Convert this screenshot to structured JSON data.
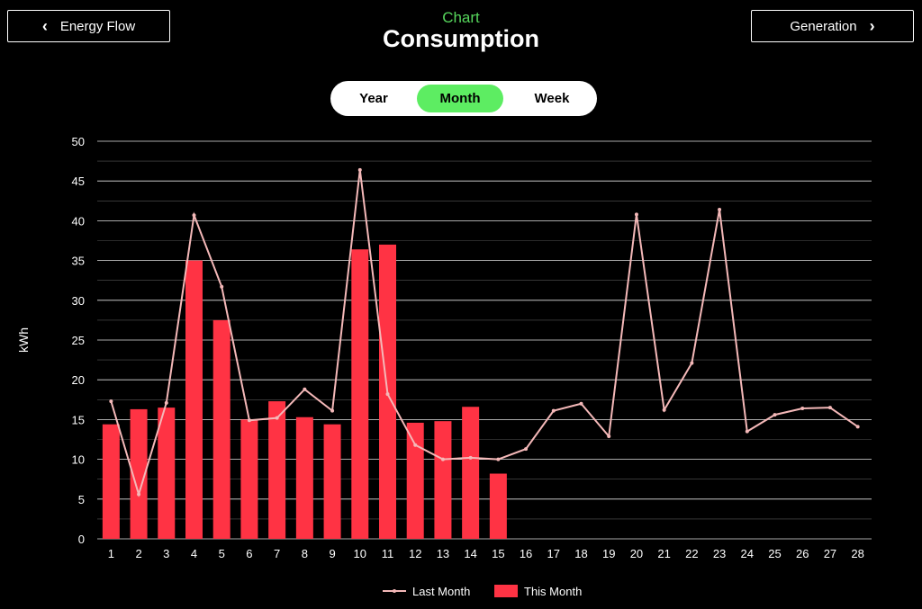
{
  "nav": {
    "left_label": "Energy Flow",
    "right_label": "Generation"
  },
  "header": {
    "subtitle": "Chart",
    "title": "Consumption"
  },
  "toggle": {
    "options": [
      "Year",
      "Month",
      "Week"
    ],
    "active": "Month"
  },
  "colors": {
    "bar": "#ff3344",
    "line": "#f4b8b8",
    "accent": "#5ded62",
    "grid": "#e0e0e0"
  },
  "chart_data": {
    "type": "bar",
    "ylabel": "kWh",
    "ylim": [
      0,
      50
    ],
    "yticks": [
      0,
      5,
      10,
      15,
      20,
      25,
      30,
      35,
      40,
      45,
      50
    ],
    "categories": [
      "1",
      "2",
      "3",
      "4",
      "5",
      "6",
      "7",
      "8",
      "9",
      "10",
      "11",
      "12",
      "13",
      "14",
      "15",
      "16",
      "17",
      "18",
      "19",
      "20",
      "21",
      "22",
      "23",
      "24",
      "25",
      "26",
      "27",
      "28"
    ],
    "series": [
      {
        "name": "This Month",
        "type": "bar",
        "values": [
          14.4,
          16.3,
          16.5,
          35.0,
          27.5,
          15.0,
          17.3,
          15.3,
          14.4,
          36.4,
          37.0,
          14.6,
          14.8,
          16.6,
          8.2,
          0,
          0,
          0,
          0,
          0,
          0,
          0,
          0,
          0,
          0,
          0,
          0,
          0
        ]
      },
      {
        "name": "Last Month",
        "type": "line",
        "values": [
          17.3,
          5.6,
          17.1,
          40.7,
          31.7,
          14.9,
          15.2,
          18.8,
          16.1,
          46.4,
          18.2,
          11.8,
          10.0,
          10.2,
          10.0,
          11.3,
          16.1,
          17.0,
          12.9,
          40.8,
          16.2,
          22.1,
          41.4,
          13.5,
          15.6,
          16.4,
          16.5,
          14.1
        ]
      }
    ],
    "legend_position": "bottom-center",
    "grid": true
  }
}
